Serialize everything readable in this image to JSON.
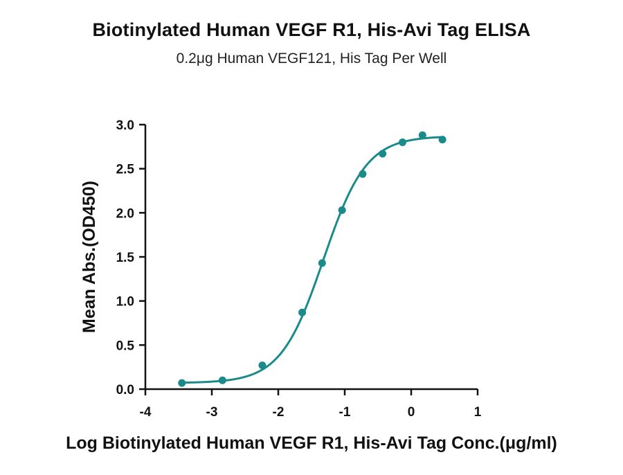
{
  "chart_data": {
    "type": "scatter",
    "title": "Biotinylated Human VEGF R1, His-Avi Tag ELISA",
    "subtitle": "0.2μg Human VEGF121, His Tag Per Well",
    "xlabel": "Log Biotinylated Human VEGF R1, His-Avi Tag Conc.(μg/ml)",
    "ylabel": "Mean Abs.(OD450)",
    "xlim": [
      -4,
      1
    ],
    "ylim": [
      0,
      3
    ],
    "xticks": [
      "-4",
      "-3",
      "-2",
      "-1",
      "0",
      "1"
    ],
    "yticks": [
      "0.0",
      "0.5",
      "1.0",
      "1.5",
      "2.0",
      "2.5",
      "3.0"
    ],
    "grid": false,
    "series": [
      {
        "color": "#1a8a8a",
        "points": [
          {
            "x": -3.45,
            "y": 0.07
          },
          {
            "x": -2.84,
            "y": 0.1
          },
          {
            "x": -2.24,
            "y": 0.27
          },
          {
            "x": -1.64,
            "y": 0.87
          },
          {
            "x": -1.34,
            "y": 1.43
          },
          {
            "x": -1.04,
            "y": 2.03
          },
          {
            "x": -0.73,
            "y": 2.44
          },
          {
            "x": -0.43,
            "y": 2.67
          },
          {
            "x": -0.13,
            "y": 2.8
          },
          {
            "x": 0.17,
            "y": 2.88
          },
          {
            "x": 0.47,
            "y": 2.83
          }
        ],
        "fit": {
          "model": "4PL",
          "bottom": 0.07,
          "top": 2.87,
          "logEC50": -1.32,
          "hill": 1.35
        }
      }
    ]
  }
}
